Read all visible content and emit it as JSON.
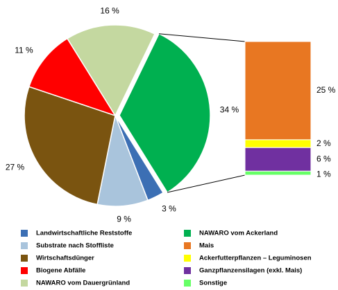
{
  "chart_data": {
    "type": "pie",
    "categories": [
      "NAWARO vom Ackerland",
      "Landwirtschaftliche Reststoffe",
      "Substrate nach Stoffliste",
      "Wirtschaftsdünger",
      "Biogene Abfälle",
      "NAWARO vom Dauergrünland"
    ],
    "values": [
      34,
      3,
      9,
      27,
      11,
      16
    ],
    "value_labels": [
      "34 %",
      "3 %",
      "9 %",
      "27 %",
      "11 %",
      "16 %"
    ],
    "colors": [
      "#00b050",
      "#3c6fb4",
      "#a9c4dc",
      "#7a5410",
      "#ff0000",
      "#c4d8a0"
    ],
    "breakdown": {
      "categories": [
        "Mais",
        "Ackerfutterpflanzen – Leguminosen",
        "Ganzpflanzensilagen (exkl. Mais)",
        "Sonstige"
      ],
      "values": [
        25,
        2,
        6,
        1
      ],
      "value_labels": [
        "25 %",
        "2 %",
        "6 %",
        "1 %"
      ],
      "colors": [
        "#e87722",
        "#ffff00",
        "#7030a0",
        "#66ff66"
      ]
    }
  }
}
